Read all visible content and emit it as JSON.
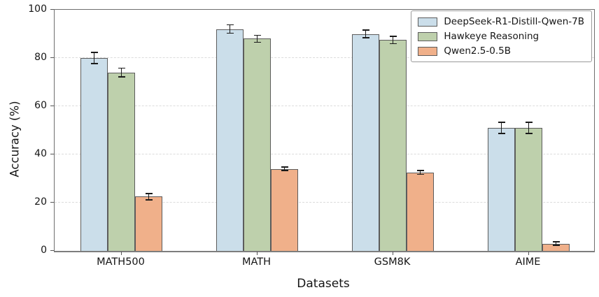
{
  "axes": {
    "ylabel": "Accuracy (%)",
    "xlabel": "Datasets"
  },
  "chart_data": {
    "type": "bar",
    "title": "",
    "xlabel": "Datasets",
    "ylabel": "Accuracy (%)",
    "categories": [
      "MATH500",
      "MATH",
      "GSM8K",
      "AIME"
    ],
    "series": [
      {
        "name": "DeepSeek-R1-Distill-Qwen-7B",
        "color": "#cbdeea",
        "values": [
          80,
          92,
          90,
          51
        ],
        "errors": [
          2.5,
          2,
          1.8,
          2.5
        ]
      },
      {
        "name": "Hawkeye Reasoning",
        "color": "#bed0ac",
        "values": [
          74,
          88,
          87.5,
          51
        ],
        "errors": [
          2,
          1.7,
          1.8,
          2.5
        ]
      },
      {
        "name": "Qwen2.5-0.5B",
        "color": "#f0b08a",
        "values": [
          22.5,
          34,
          32.5,
          3
        ],
        "errors": [
          1.5,
          1,
          1,
          1
        ]
      }
    ],
    "ylim": [
      0,
      100
    ],
    "yticks": [
      0,
      20,
      40,
      60,
      80,
      100
    ],
    "grid": "horizontal-dashed",
    "grid_color": "#dcdcdc",
    "legend_position": "upper right",
    "bar_edge_color": "#5c5c5c",
    "error_bar_color": "#1a1a1a"
  }
}
